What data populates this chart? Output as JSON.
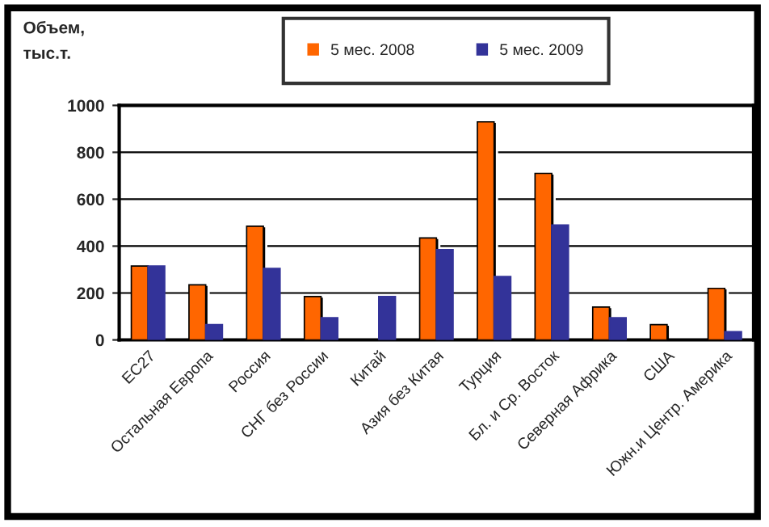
{
  "chart_data": {
    "type": "bar",
    "ylabel": "Объем,\nтыс.т.",
    "categories": [
      "ЕС27",
      "Остальная Европа",
      "Россия",
      "СНГ без России",
      "Китай",
      "Азия без Китая",
      "Турция",
      "Бл. и Ср. Восток",
      "Северная Африка",
      "США",
      "Южн.и Центр. Америка"
    ],
    "series": [
      {
        "name": "5 мес. 2008",
        "color": "#ff6600",
        "values": [
          315,
          235,
          485,
          185,
          null,
          435,
          930,
          710,
          140,
          65,
          220
        ]
      },
      {
        "name": "5 мес. 2009",
        "color": "#333399",
        "values": [
          315,
          65,
          305,
          95,
          185,
          385,
          270,
          490,
          95,
          null,
          35
        ]
      }
    ],
    "ylim": [
      0,
      1000
    ],
    "yticks": [
      0,
      200,
      400,
      600,
      800,
      1000
    ],
    "grid": "y",
    "legend": "top"
  }
}
